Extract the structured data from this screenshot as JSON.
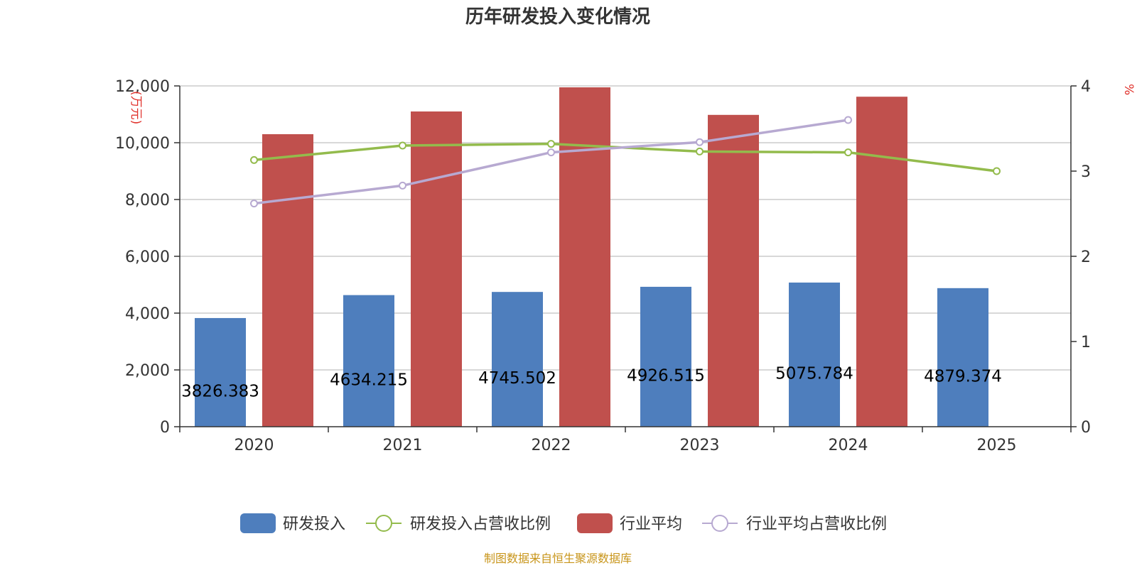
{
  "colors": {
    "rd": "#4e7ebd",
    "rd_ratio": "#93bb4c",
    "industry": "#c0504d",
    "industry_ratio": "#b7a9d1",
    "unit": "#e0312b",
    "source": "#c8951a"
  },
  "chart_data": {
    "type": "bar",
    "title": "历年研发投入变化情况",
    "categories": [
      "2020",
      "2021",
      "2022",
      "2023",
      "2024",
      "2025"
    ],
    "left_axis": {
      "unit": "(万元)",
      "ylim": [
        0,
        12000
      ],
      "ticks": [
        "0",
        "2,000",
        "4,000",
        "6,000",
        "8,000",
        "10,000",
        "12,000"
      ]
    },
    "right_axis": {
      "unit": "%",
      "ylim": [
        0,
        4
      ],
      "ticks": [
        "0",
        "1",
        "2",
        "3",
        "4"
      ]
    },
    "grid": true,
    "legend_position": "bottom",
    "series": [
      {
        "name": "研发投入",
        "type": "bar",
        "axis": "left",
        "color_key": "rd",
        "values": [
          3826.383,
          4634.215,
          4745.502,
          4926.515,
          5075.784,
          4879.374
        ],
        "labels": [
          "3826.383",
          "4634.215",
          "4745.502",
          "4926.515",
          "5075.784",
          "4879.374"
        ]
      },
      {
        "name": "研发投入占营收比例",
        "type": "line",
        "axis": "right",
        "color_key": "rd_ratio",
        "values": [
          3.13,
          3.3,
          3.32,
          3.23,
          3.22,
          3.0
        ]
      },
      {
        "name": "行业平均",
        "type": "bar",
        "axis": "left",
        "color_key": "industry",
        "values": [
          10300,
          11100,
          11950,
          10980,
          11620,
          null
        ]
      },
      {
        "name": "行业平均占营收比例",
        "type": "line",
        "axis": "right",
        "color_key": "industry_ratio",
        "values": [
          2.62,
          2.83,
          3.22,
          3.34,
          3.6,
          null
        ]
      }
    ]
  },
  "footer": {
    "source": "制图数据来自恒生聚源数据库"
  }
}
